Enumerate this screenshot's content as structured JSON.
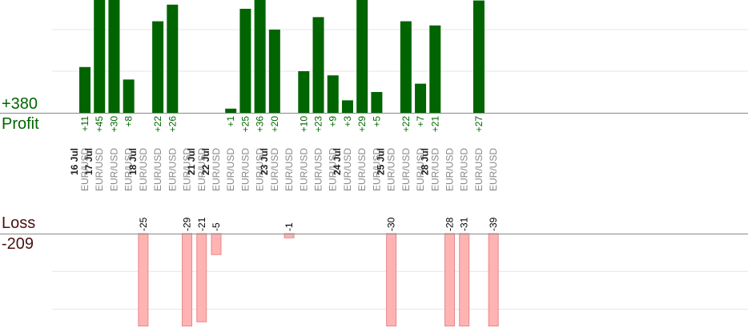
{
  "summary": {
    "profit_total": "+380",
    "profit_label": "Profit",
    "loss_label": "Loss",
    "loss_total": "-209"
  },
  "colors": {
    "profit_bar": "#006400",
    "profit_text": "#006600",
    "loss_bar": "#ffb3b3",
    "loss_bar_edge": "#e88888",
    "loss_text": "#000000",
    "date_text": "#222222",
    "pair_text": "#888888",
    "grid": "#e6e6e6",
    "axis": "#888888"
  },
  "chart_data": {
    "type": "bar",
    "title": "",
    "xlabel": "",
    "ylabel": "",
    "grid": true,
    "profit_panel": {
      "series_label": "Profit",
      "total": "+380",
      "ylim": [
        0,
        30
      ],
      "gridlines": [
        10,
        20,
        30
      ]
    },
    "loss_panel": {
      "series_label": "Loss",
      "total": "-209",
      "ylim": [
        -22,
        0
      ],
      "gridlines": [
        -9,
        -18
      ]
    },
    "date_groups": [
      "16 Jul",
      "17 Jul",
      "18 Jul",
      "21 Jul",
      "22 Jul",
      "23 Jul",
      "24 Jul",
      "25 Jul",
      "28 Jul"
    ],
    "trades": [
      {
        "slot": 0,
        "date": "16 Jul",
        "pair": "EUR/USD",
        "value": 11,
        "label": "+11"
      },
      {
        "slot": 1,
        "date": "17 Jul",
        "pair": "EUR/USD",
        "value": 45,
        "label": "+45"
      },
      {
        "slot": 2,
        "date": "17 Jul",
        "pair": "EUR/USD",
        "value": 30,
        "label": "+30"
      },
      {
        "slot": 3,
        "date": "17 Jul",
        "pair": "EUR/USD",
        "value": 8,
        "label": "+8"
      },
      {
        "slot": 4,
        "date": "18 Jul",
        "pair": "EUR/USD",
        "value": -25,
        "label": "-25"
      },
      {
        "slot": 5,
        "date": "18 Jul",
        "pair": "EUR/USD",
        "value": 22,
        "label": "+22"
      },
      {
        "slot": 6,
        "date": "18 Jul",
        "pair": "EUR/USD",
        "value": 26,
        "label": "+26"
      },
      {
        "slot": 7,
        "date": "18 Jul",
        "pair": "EUR/USD",
        "value": -29,
        "label": "-29"
      },
      {
        "slot": 8,
        "date": "21 Jul",
        "pair": "EUR/USD",
        "value": -21,
        "label": "-21"
      },
      {
        "slot": 9,
        "date": "22 Jul",
        "pair": "EUR/USD",
        "value": -5,
        "label": "-5"
      },
      {
        "slot": 10,
        "date": "22 Jul",
        "pair": "EUR/USD",
        "value": 1,
        "label": "+1"
      },
      {
        "slot": 11,
        "date": "22 Jul",
        "pair": "EUR/USD",
        "value": 25,
        "label": "+25"
      },
      {
        "slot": 12,
        "date": "22 Jul",
        "pair": "EUR/USD",
        "value": 36,
        "label": "+36"
      },
      {
        "slot": 13,
        "date": "23 Jul",
        "pair": "EUR/USD",
        "value": 20,
        "label": "+20"
      },
      {
        "slot": 14,
        "date": "23 Jul",
        "pair": "EUR/USD",
        "value": -1,
        "label": "-1"
      },
      {
        "slot": 15,
        "date": "23 Jul",
        "pair": "EUR/USD",
        "value": 10,
        "label": "+10"
      },
      {
        "slot": 16,
        "date": "23 Jul",
        "pair": "EUR/USD",
        "value": 23,
        "label": "+23"
      },
      {
        "slot": 17,
        "date": "23 Jul",
        "pair": "EUR/USD",
        "value": 9,
        "label": "+9"
      },
      {
        "slot": 18,
        "date": "24 Jul",
        "pair": "EUR/USD",
        "value": 3,
        "label": "+3"
      },
      {
        "slot": 19,
        "date": "24 Jul",
        "pair": "EUR/USD",
        "value": 29,
        "label": "+29"
      },
      {
        "slot": 20,
        "date": "24 Jul",
        "pair": "EUR/USD",
        "value": 5,
        "label": "+5"
      },
      {
        "slot": 21,
        "date": "25 Jul",
        "pair": "EUR/USD",
        "value": -30,
        "label": "-30"
      },
      {
        "slot": 22,
        "date": "25 Jul",
        "pair": "EUR/USD",
        "value": 22,
        "label": "+22"
      },
      {
        "slot": 23,
        "date": "25 Jul",
        "pair": "EUR/USD",
        "value": 7,
        "label": "+7"
      },
      {
        "slot": 24,
        "date": "28 Jul",
        "pair": "EUR/USD",
        "value": 21,
        "label": "+21"
      },
      {
        "slot": 25,
        "date": "28 Jul",
        "pair": "EUR/USD",
        "value": -28,
        "label": "-28"
      },
      {
        "slot": 26,
        "date": "28 Jul",
        "pair": "EUR/USD",
        "value": -31,
        "label": "-31"
      },
      {
        "slot": 27,
        "date": "28 Jul",
        "pair": "EUR/USD",
        "value": 27,
        "label": "+27"
      },
      {
        "slot": 28,
        "date": "28 Jul",
        "pair": "EUR/USD",
        "value": -39,
        "label": "-39"
      }
    ]
  }
}
